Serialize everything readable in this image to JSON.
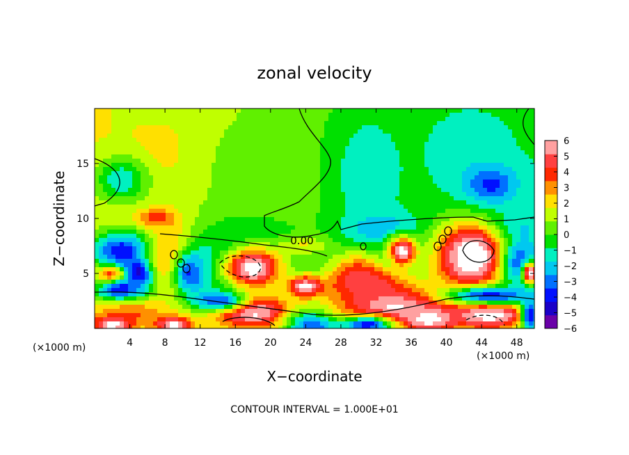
{
  "chart_data": {
    "type": "heatmap",
    "title": "zonal velocity",
    "xlabel": "X−coordinate",
    "ylabel": "Z−coordinate",
    "x_unit_left": "(×1000 m)",
    "x_unit_right": "(×1000 m)",
    "footer": "CONTOUR INTERVAL = 1.000E+01",
    "contour_label": "0.00",
    "xlim": [
      0,
      50
    ],
    "ylim": [
      0,
      20
    ],
    "xticks": [
      4,
      8,
      12,
      16,
      20,
      24,
      28,
      32,
      36,
      40,
      44,
      48
    ],
    "yticks": [
      5,
      10,
      15
    ],
    "colorbar": {
      "range": [
        -6,
        6
      ],
      "ticks": [
        6,
        5,
        4,
        3,
        2,
        1,
        0,
        -1,
        -2,
        -3,
        -4,
        -5,
        -6
      ],
      "tick_labels": [
        "6",
        "5",
        "4",
        "3",
        "2",
        "1",
        "0",
        "−1",
        "−2",
        "−3",
        "−4",
        "−5",
        "−6"
      ],
      "colors": [
        "#6a00a8",
        "#1a00c8",
        "#0010ff",
        "#0070ff",
        "#00c8f0",
        "#00f0c0",
        "#00e000",
        "#60f000",
        "#c0ff00",
        "#ffe000",
        "#ff9000",
        "#ff2800",
        "#ff4040",
        "#ffa0a0"
      ]
    },
    "background_value": 0.8,
    "blobs": [
      {
        "x": 8,
        "y": 16,
        "rx": 4,
        "ry": 3,
        "v": 2.2
      },
      {
        "x": 19,
        "y": 14.5,
        "rx": 8,
        "ry": 5,
        "v": 0.6
      },
      {
        "x": 7,
        "y": 10,
        "rx": 2.2,
        "ry": 0.9,
        "v": 4.2
      },
      {
        "x": 31,
        "y": 14,
        "rx": 5,
        "ry": 7,
        "v": -1.4
      },
      {
        "x": 42,
        "y": 16,
        "rx": 6,
        "ry": 5,
        "v": -1.3
      },
      {
        "x": 45,
        "y": 13,
        "rx": 3,
        "ry": 1.8,
        "v": -3.8
      },
      {
        "x": 3,
        "y": 13.5,
        "rx": 3,
        "ry": 2,
        "v": -1.6
      },
      {
        "x": 33,
        "y": 9,
        "rx": 4,
        "ry": 1.5,
        "v": -2.6
      },
      {
        "x": 47,
        "y": 9,
        "rx": 4,
        "ry": 1.5,
        "v": -2.2
      },
      {
        "x": 23,
        "y": 7.5,
        "rx": 3,
        "ry": 0.8,
        "v": 3.2
      },
      {
        "x": 3,
        "y": 7,
        "rx": 3.5,
        "ry": 1.8,
        "v": -4.2
      },
      {
        "x": 5,
        "y": 5,
        "rx": 2,
        "ry": 1.2,
        "v": -5.8
      },
      {
        "x": 9,
        "y": 6,
        "rx": 2.5,
        "ry": 3,
        "v": 4.4
      },
      {
        "x": 11,
        "y": 5,
        "rx": 2,
        "ry": 2,
        "v": -3.6
      },
      {
        "x": 17,
        "y": 5.5,
        "rx": 6,
        "ry": 3.5,
        "v": -4.6
      },
      {
        "x": 18,
        "y": 5.5,
        "rx": 4,
        "ry": 2.2,
        "v": 6.8
      },
      {
        "x": 24,
        "y": 3.8,
        "rx": 2,
        "ry": 1,
        "v": 6.5
      },
      {
        "x": 30,
        "y": 5,
        "rx": 3,
        "ry": 1.8,
        "v": 4.0
      },
      {
        "x": 35,
        "y": 7,
        "rx": 2,
        "ry": 1.6,
        "v": -4.0
      },
      {
        "x": 35,
        "y": 7,
        "rx": 1.8,
        "ry": 1.5,
        "v": 6.8
      },
      {
        "x": 42.5,
        "y": 6.5,
        "rx": 4,
        "ry": 3,
        "v": 4.6
      },
      {
        "x": 43,
        "y": 6.5,
        "rx": 3,
        "ry": 2.4,
        "v": 6.9
      },
      {
        "x": 48.5,
        "y": 6,
        "rx": 2,
        "ry": 2,
        "v": -3.4
      },
      {
        "x": 49.5,
        "y": 5,
        "rx": 0.8,
        "ry": 1,
        "v": 6.5
      },
      {
        "x": 2,
        "y": 4.6,
        "rx": 1.6,
        "ry": 0.9,
        "v": 6.6
      },
      {
        "x": 3,
        "y": 3.5,
        "rx": 3,
        "ry": 1.2,
        "v": -4.2
      },
      {
        "x": 4,
        "y": 1.3,
        "rx": 4,
        "ry": 1.2,
        "v": 3.5
      },
      {
        "x": 2,
        "y": 0.3,
        "rx": 2,
        "ry": 0.7,
        "v": 6.6
      },
      {
        "x": 9,
        "y": 0.3,
        "rx": 2,
        "ry": 0.7,
        "v": 6.6
      },
      {
        "x": 18,
        "y": 1.5,
        "rx": 5,
        "ry": 1.6,
        "v": 6.5
      },
      {
        "x": 14,
        "y": 2.5,
        "rx": 3,
        "ry": 0.9,
        "v": -3.6
      },
      {
        "x": 25,
        "y": 0.3,
        "rx": 3,
        "ry": 1.5,
        "v": -4.0
      },
      {
        "x": 34,
        "y": 2,
        "rx": 7,
        "ry": 2,
        "v": 6.2
      },
      {
        "x": 31,
        "y": 4,
        "rx": 4,
        "ry": 1.2,
        "v": 5.0
      },
      {
        "x": 31,
        "y": 0.3,
        "rx": 3,
        "ry": 0.8,
        "v": -4.0
      },
      {
        "x": 38,
        "y": 0.8,
        "rx": 3,
        "ry": 1,
        "v": 6.5
      },
      {
        "x": 45,
        "y": 1.2,
        "rx": 5,
        "ry": 1.4,
        "v": 6.6
      },
      {
        "x": 45,
        "y": 3.0,
        "rx": 5,
        "ry": 0.8,
        "v": -3.8
      },
      {
        "x": 49.5,
        "y": 1.2,
        "rx": 1,
        "ry": 1.5,
        "v": -4.0
      }
    ]
  }
}
